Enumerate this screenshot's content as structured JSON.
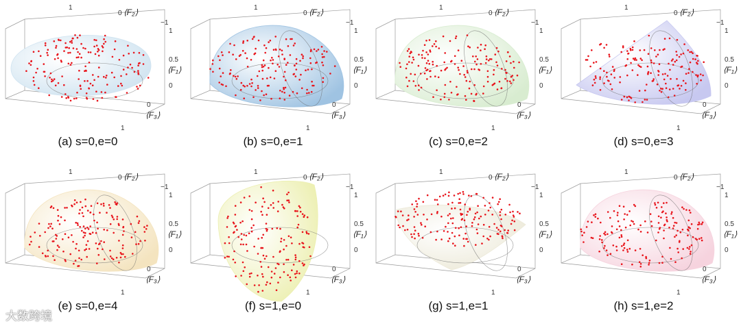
{
  "panels": [
    {
      "caption": "(a) s=0,e=0",
      "color": "#cfe3f0",
      "shape": "ellipsoid"
    },
    {
      "caption": "(b) s=0,e=1",
      "color": "#9fc3e2",
      "shape": "dome"
    },
    {
      "caption": "(c) s=0,e=2",
      "color": "#d8ecd0",
      "shape": "dome"
    },
    {
      "caption": "(d) s=0,e=3",
      "color": "#c7c8f0",
      "shape": "cone"
    },
    {
      "caption": "(e) s=0,e=4",
      "color": "#f4e4bf",
      "shape": "dome"
    },
    {
      "caption": "(f) s=1,e=0",
      "color": "#ecefb0",
      "shape": "tall"
    },
    {
      "caption": "(g) s=1,e=1",
      "color": "#ece9d8",
      "shape": "bowl"
    },
    {
      "caption": "(h) s=1,e=2",
      "color": "#f6d3de",
      "shape": "dome"
    }
  ],
  "axis_labels": {
    "f1": "⟨F₁⟩",
    "f2": "⟨F₂⟩",
    "f3": "⟨F₃⟩"
  },
  "ticks": {
    "one": "1",
    "zero": "0",
    "half": "0.5",
    "minus_one": "−1"
  },
  "watermark": "大数跨境"
}
